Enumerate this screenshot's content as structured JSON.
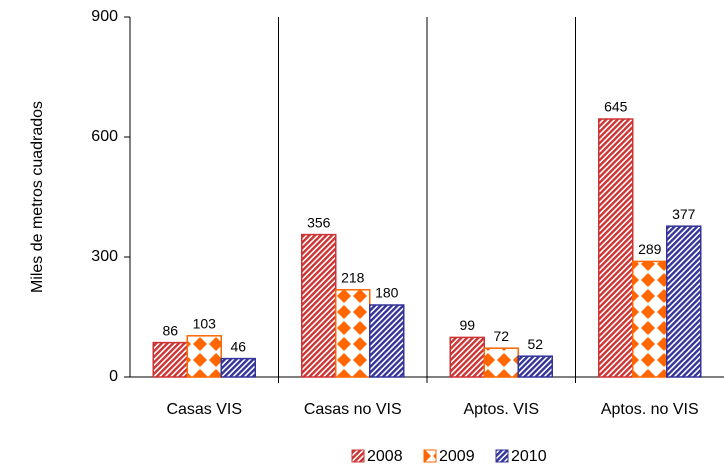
{
  "chart_data": {
    "type": "bar",
    "y_label": "Miles de metros cuadrados",
    "categories": [
      "Casas VIS",
      "Casas no VIS",
      "Aptos. VIS",
      "Aptos. no VIS"
    ],
    "series": [
      {
        "name": "2008",
        "color": "#cc3333",
        "pattern": "hatch",
        "values": [
          86,
          356,
          99,
          645
        ]
      },
      {
        "name": "2009",
        "color": "#ff6600",
        "pattern": "checker",
        "values": [
          103,
          218,
          72,
          289
        ]
      },
      {
        "name": "2010",
        "color": "#333399",
        "pattern": "hatch",
        "values": [
          46,
          180,
          52,
          377
        ]
      }
    ],
    "ylim": [
      0,
      900
    ],
    "yticks": [
      0,
      300,
      600,
      900
    ],
    "category_separators": true,
    "legend": "bottom"
  }
}
